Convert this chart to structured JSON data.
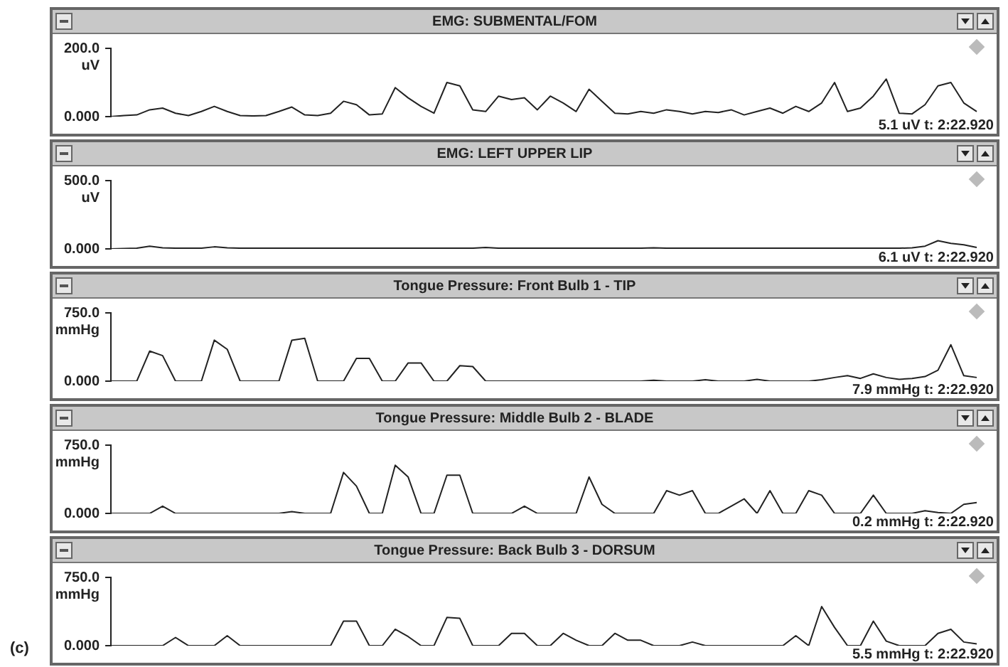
{
  "chart_data": [
    {
      "type": "line",
      "title": "EMG: SUBMENTAL/FOM",
      "ylabel": "uV",
      "annotations": [
        "5.1 uV t: 2:22.920"
      ],
      "marker": "none",
      "tick_labels": "y",
      "grid": false,
      "legend": false,
      "categories": [
        null,
        null,
        null,
        null,
        null,
        null,
        null,
        null,
        null,
        null,
        null,
        null,
        null,
        null,
        null,
        null,
        null,
        null,
        null,
        null,
        null,
        null,
        null,
        null,
        null,
        null,
        null,
        null,
        null,
        null,
        null,
        null,
        null,
        null,
        null,
        null,
        null,
        null,
        null,
        null,
        null,
        null,
        null,
        null,
        null,
        null,
        null,
        null,
        null,
        null,
        null,
        null,
        null,
        null,
        null,
        null,
        null,
        null,
        null,
        null,
        null,
        null,
        null,
        null,
        null,
        null,
        null,
        null
      ],
      "ylim": [
        0,
        200
      ],
      "yticks": [
        {
          "value": 0,
          "label": "0.000"
        },
        {
          "value": 200,
          "label": "200.0"
        }
      ],
      "series": [
        {
          "color": "#222222",
          "values": [
            0,
            3,
            5,
            20,
            25,
            10,
            3,
            15,
            30,
            15,
            3,
            2,
            3,
            15,
            28,
            5,
            3,
            10,
            45,
            35,
            5,
            8,
            85,
            55,
            30,
            10,
            100,
            90,
            20,
            15,
            60,
            50,
            55,
            20,
            60,
            40,
            15,
            80,
            45,
            10,
            8,
            15,
            10,
            20,
            15,
            8,
            15,
            12,
            20,
            5,
            15,
            25,
            10,
            30,
            15,
            40,
            100,
            15,
            25,
            60,
            110,
            10,
            8,
            35,
            90,
            100,
            40,
            15
          ]
        }
      ]
    },
    {
      "type": "line",
      "title": "EMG: LEFT UPPER LIP",
      "ylabel": "uV",
      "annotations": [
        "6.1 uV t: 2:22.920"
      ],
      "marker": "none",
      "tick_labels": "y",
      "grid": false,
      "legend": false,
      "categories": [
        null,
        null,
        null,
        null,
        null,
        null,
        null,
        null,
        null,
        null,
        null,
        null,
        null,
        null,
        null,
        null,
        null,
        null,
        null,
        null,
        null,
        null,
        null,
        null,
        null,
        null,
        null,
        null,
        null,
        null,
        null,
        null,
        null,
        null,
        null,
        null,
        null,
        null,
        null,
        null,
        null,
        null,
        null,
        null,
        null,
        null,
        null,
        null,
        null,
        null,
        null,
        null,
        null,
        null,
        null,
        null,
        null,
        null,
        null,
        null,
        null,
        null,
        null,
        null,
        null,
        null,
        null,
        null
      ],
      "ylim": [
        0,
        500
      ],
      "yticks": [
        {
          "value": 0,
          "label": "0.000"
        },
        {
          "value": 500,
          "label": "500.0"
        }
      ],
      "series": [
        {
          "color": "#222222",
          "values": [
            0,
            3,
            5,
            20,
            8,
            5,
            5,
            5,
            15,
            8,
            5,
            5,
            5,
            5,
            5,
            5,
            5,
            5,
            5,
            5,
            5,
            5,
            5,
            5,
            5,
            5,
            5,
            5,
            5,
            10,
            5,
            5,
            5,
            5,
            5,
            5,
            5,
            5,
            5,
            5,
            5,
            5,
            8,
            5,
            5,
            5,
            5,
            5,
            5,
            5,
            5,
            5,
            5,
            5,
            5,
            5,
            5,
            5,
            5,
            5,
            5,
            5,
            8,
            20,
            60,
            40,
            30,
            10
          ]
        }
      ]
    },
    {
      "type": "line",
      "title": "Tongue Pressure: Front Bulb 1 - TIP",
      "ylabel": "mmHg",
      "annotations": [
        "7.9 mmHg t: 2:22.920"
      ],
      "marker": "none",
      "tick_labels": "y",
      "grid": false,
      "legend": false,
      "categories": [
        null,
        null,
        null,
        null,
        null,
        null,
        null,
        null,
        null,
        null,
        null,
        null,
        null,
        null,
        null,
        null,
        null,
        null,
        null,
        null,
        null,
        null,
        null,
        null,
        null,
        null,
        null,
        null,
        null,
        null,
        null,
        null,
        null,
        null,
        null,
        null,
        null,
        null,
        null,
        null,
        null,
        null,
        null,
        null,
        null,
        null,
        null,
        null,
        null,
        null,
        null,
        null,
        null,
        null,
        null,
        null,
        null,
        null,
        null,
        null,
        null,
        null,
        null,
        null,
        null,
        null,
        null,
        null
      ],
      "ylim": [
        0,
        750
      ],
      "yticks": [
        {
          "value": 0,
          "label": "0.000"
        },
        {
          "value": 750,
          "label": "750.0"
        }
      ],
      "series": [
        {
          "color": "#222222",
          "values": [
            0,
            0,
            0,
            330,
            280,
            0,
            0,
            0,
            450,
            350,
            0,
            0,
            0,
            0,
            450,
            470,
            0,
            0,
            0,
            250,
            250,
            0,
            0,
            200,
            200,
            0,
            0,
            170,
            160,
            0,
            0,
            0,
            0,
            0,
            0,
            0,
            0,
            0,
            0,
            0,
            0,
            0,
            10,
            0,
            0,
            0,
            15,
            0,
            0,
            0,
            20,
            0,
            0,
            0,
            0,
            15,
            40,
            60,
            30,
            80,
            40,
            20,
            30,
            50,
            120,
            400,
            60,
            40
          ]
        }
      ]
    },
    {
      "type": "line",
      "title": "Tongue Pressure: Middle Bulb 2 - BLADE",
      "ylabel": "mmHg",
      "annotations": [
        "0.2 mmHg t: 2:22.920"
      ],
      "marker": "none",
      "tick_labels": "y",
      "grid": false,
      "legend": false,
      "categories": [
        null,
        null,
        null,
        null,
        null,
        null,
        null,
        null,
        null,
        null,
        null,
        null,
        null,
        null,
        null,
        null,
        null,
        null,
        null,
        null,
        null,
        null,
        null,
        null,
        null,
        null,
        null,
        null,
        null,
        null,
        null,
        null,
        null,
        null,
        null,
        null,
        null,
        null,
        null,
        null,
        null,
        null,
        null,
        null,
        null,
        null,
        null,
        null,
        null,
        null,
        null,
        null,
        null,
        null,
        null,
        null,
        null,
        null,
        null,
        null,
        null,
        null,
        null,
        null,
        null,
        null,
        null,
        null
      ],
      "ylim": [
        0,
        750
      ],
      "yticks": [
        {
          "value": 0,
          "label": "0.000"
        },
        {
          "value": 750,
          "label": "750.0"
        }
      ],
      "series": [
        {
          "color": "#222222",
          "values": [
            0,
            0,
            0,
            0,
            80,
            0,
            0,
            0,
            0,
            0,
            0,
            0,
            0,
            0,
            20,
            0,
            0,
            0,
            450,
            300,
            0,
            0,
            530,
            400,
            0,
            0,
            420,
            420,
            0,
            0,
            0,
            0,
            80,
            0,
            0,
            0,
            0,
            400,
            100,
            0,
            0,
            0,
            0,
            250,
            200,
            250,
            0,
            0,
            80,
            160,
            0,
            250,
            0,
            0,
            250,
            200,
            0,
            0,
            0,
            200,
            0,
            0,
            0,
            30,
            10,
            0,
            100,
            120
          ]
        }
      ]
    },
    {
      "type": "line",
      "title": "Tongue Pressure: Back Bulb 3 - DORSUM",
      "ylabel": "mmHg",
      "annotations": [
        "5.5 mmHg t: 2:22.920",
        "(c)"
      ],
      "marker": "none",
      "tick_labels": "y",
      "grid": false,
      "legend": false,
      "categories": [
        null,
        null,
        null,
        null,
        null,
        null,
        null,
        null,
        null,
        null,
        null,
        null,
        null,
        null,
        null,
        null,
        null,
        null,
        null,
        null,
        null,
        null,
        null,
        null,
        null,
        null,
        null,
        null,
        null,
        null,
        null,
        null,
        null,
        null,
        null,
        null,
        null,
        null,
        null,
        null,
        null,
        null,
        null,
        null,
        null,
        null,
        null,
        null,
        null,
        null,
        null,
        null,
        null,
        null,
        null,
        null,
        null,
        null,
        null,
        null,
        null,
        null,
        null,
        null,
        null,
        null,
        null,
        null
      ],
      "ylim": [
        0,
        750
      ],
      "yticks": [
        {
          "value": 0,
          "label": "0.000"
        },
        {
          "value": 750,
          "label": "750.0"
        }
      ],
      "series": [
        {
          "color": "#222222",
          "values": [
            0,
            0,
            0,
            0,
            0,
            90,
            0,
            0,
            0,
            110,
            0,
            0,
            0,
            0,
            0,
            0,
            0,
            0,
            270,
            270,
            0,
            0,
            180,
            100,
            0,
            0,
            310,
            300,
            0,
            0,
            0,
            135,
            135,
            0,
            0,
            135,
            60,
            0,
            0,
            135,
            60,
            60,
            0,
            0,
            0,
            40,
            0,
            0,
            0,
            0,
            0,
            0,
            0,
            110,
            0,
            430,
            200,
            0,
            0,
            270,
            50,
            0,
            0,
            0,
            135,
            180,
            40,
            20
          ]
        }
      ]
    }
  ]
}
